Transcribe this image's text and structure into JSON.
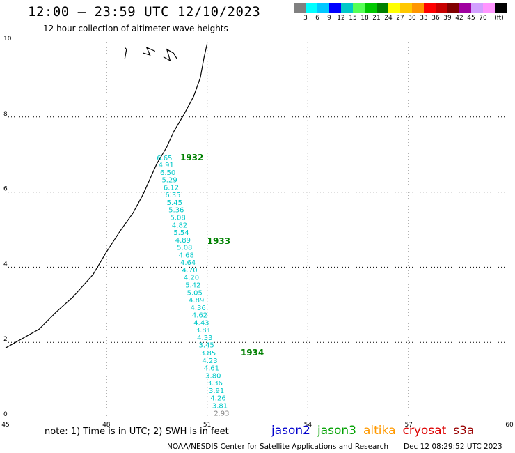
{
  "header": {
    "title": "12:00 – 23:59 UTC 12/10/2023",
    "subtitle": "12 hour collection of altimeter wave heights"
  },
  "legend": {
    "colors": [
      "#808080",
      "#00ffff",
      "#00c8ff",
      "#0000ff",
      "#00c8c8",
      "#55ff55",
      "#00c800",
      "#008000",
      "#ffff00",
      "#ffc800",
      "#ff9600",
      "#ff0000",
      "#c80000",
      "#800000",
      "#a000a0",
      "#d2a0ff",
      "#ff96ff",
      "#000000"
    ],
    "ticks": [
      "3",
      "6",
      "9",
      "12",
      "15",
      "18",
      "21",
      "24",
      "27",
      "30",
      "33",
      "36",
      "39",
      "42",
      "45",
      "70",
      "(ft)"
    ]
  },
  "axes": {
    "x_ticks": [
      "45",
      "48",
      "51",
      "54",
      "57",
      "60"
    ],
    "y_ticks": [
      "0",
      "2",
      "4",
      "6",
      "8",
      "10"
    ]
  },
  "chart_data": {
    "type": "scatter",
    "x_range": [
      45,
      60
    ],
    "y_range": [
      0,
      10
    ],
    "grid": true,
    "coastline": [
      [
        45.0,
        1.85
      ],
      [
        46.0,
        2.35
      ],
      [
        46.5,
        2.8
      ],
      [
        47.0,
        3.2
      ],
      [
        47.6,
        3.8
      ],
      [
        48.0,
        4.4
      ],
      [
        48.4,
        4.95
      ],
      [
        48.8,
        5.45
      ],
      [
        49.1,
        5.95
      ],
      [
        49.3,
        6.35
      ],
      [
        49.5,
        6.75
      ],
      [
        49.8,
        7.2
      ],
      [
        50.0,
        7.6
      ],
      [
        50.3,
        8.05
      ],
      [
        50.6,
        8.55
      ],
      [
        50.8,
        9.05
      ],
      [
        50.9,
        9.55
      ],
      [
        51.0,
        9.95
      ]
    ],
    "islands": [
      [
        [
          48.55,
          9.55
        ],
        [
          48.6,
          9.8
        ],
        [
          48.55,
          9.85
        ]
      ],
      [
        [
          49.1,
          9.7
        ],
        [
          49.3,
          9.65
        ],
        [
          49.2,
          9.85
        ],
        [
          49.45,
          9.75
        ]
      ],
      [
        [
          49.7,
          9.6
        ],
        [
          49.9,
          9.5
        ],
        [
          49.8,
          9.8
        ],
        [
          50.0,
          9.7
        ],
        [
          50.1,
          9.55
        ]
      ]
    ],
    "passes": [
      {
        "label": "1932",
        "satellite": "jason3",
        "x": 50.2,
        "y": 6.85
      },
      {
        "label": "1933",
        "satellite": "jason3",
        "x": 51.0,
        "y": 4.62
      },
      {
        "label": "1934",
        "satellite": "jason3",
        "x": 52.0,
        "y": 1.65
      }
    ],
    "swh_points": [
      {
        "x": 49.5,
        "y": 6.85,
        "v": "6.65"
      },
      {
        "x": 49.55,
        "y": 6.66,
        "v": "4.91"
      },
      {
        "x": 49.6,
        "y": 6.46,
        "v": "6.50"
      },
      {
        "x": 49.65,
        "y": 6.26,
        "v": "5.29"
      },
      {
        "x": 49.7,
        "y": 6.06,
        "v": "6.12"
      },
      {
        "x": 49.75,
        "y": 5.86,
        "v": "6.35"
      },
      {
        "x": 49.8,
        "y": 5.66,
        "v": "5.45"
      },
      {
        "x": 49.85,
        "y": 5.46,
        "v": "5.36"
      },
      {
        "x": 49.9,
        "y": 5.26,
        "v": "5.08"
      },
      {
        "x": 49.95,
        "y": 5.06,
        "v": "4.82"
      },
      {
        "x": 50.0,
        "y": 4.86,
        "v": "5.54"
      },
      {
        "x": 50.05,
        "y": 4.66,
        "v": "4.89"
      },
      {
        "x": 50.1,
        "y": 4.46,
        "v": "5.08"
      },
      {
        "x": 50.15,
        "y": 4.26,
        "v": "4.68"
      },
      {
        "x": 50.2,
        "y": 4.06,
        "v": "4.64"
      },
      {
        "x": 50.25,
        "y": 3.86,
        "v": "4.70"
      },
      {
        "x": 50.3,
        "y": 3.66,
        "v": "4.20"
      },
      {
        "x": 50.35,
        "y": 3.46,
        "v": "5.42"
      },
      {
        "x": 50.4,
        "y": 3.26,
        "v": "5.05"
      },
      {
        "x": 50.45,
        "y": 3.06,
        "v": "4.89"
      },
      {
        "x": 50.5,
        "y": 2.86,
        "v": "4.36"
      },
      {
        "x": 50.55,
        "y": 2.66,
        "v": "4.62"
      },
      {
        "x": 50.6,
        "y": 2.46,
        "v": "4.43"
      },
      {
        "x": 50.65,
        "y": 2.26,
        "v": "3.81"
      },
      {
        "x": 50.7,
        "y": 2.06,
        "v": "4.33"
      },
      {
        "x": 50.75,
        "y": 1.86,
        "v": "3.45"
      },
      {
        "x": 50.8,
        "y": 1.65,
        "v": "3.85"
      },
      {
        "x": 50.85,
        "y": 1.45,
        "v": "4.23"
      },
      {
        "x": 50.9,
        "y": 1.25,
        "v": "4.61"
      },
      {
        "x": 50.95,
        "y": 1.05,
        "v": "3.80"
      },
      {
        "x": 51.0,
        "y": 0.85,
        "v": "3.36"
      },
      {
        "x": 51.05,
        "y": 0.65,
        "v": "3.91"
      },
      {
        "x": 51.1,
        "y": 0.45,
        "v": "4.26"
      },
      {
        "x": 51.15,
        "y": 0.25,
        "v": "3.81"
      },
      {
        "x": 51.2,
        "y": 0.05,
        "v": "2.93",
        "color": "#808080"
      }
    ]
  },
  "notes": {
    "note_text": "note:  1) Time is in UTC; 2) SWH is in feet",
    "satellites": [
      {
        "name": "jason2",
        "color": "#0000cc"
      },
      {
        "name": "jason3",
        "color": "#00a000"
      },
      {
        "name": "altika",
        "color": "#ff9900"
      },
      {
        "name": "cryosat",
        "color": "#dd0000"
      },
      {
        "name": "s3a",
        "color": "#990000"
      }
    ]
  },
  "footer": {
    "left": "NOAA/NESDIS Center for Satellite Applications and Research",
    "right": "Dec 12 08:29:52 UTC 2023"
  },
  "styles": {
    "swh_color": "#00c8c8",
    "pass_color": "#008000",
    "grid_color": "#000000",
    "coast_color": "#000000"
  }
}
